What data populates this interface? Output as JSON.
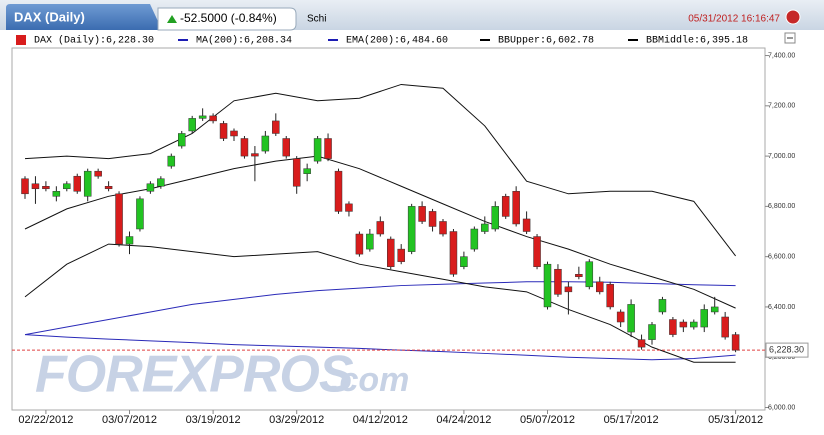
{
  "header": {
    "tab": "DAX (Daily)",
    "change": "-52.5000 (-0.84%)",
    "search": "Schi",
    "timestamp": "05/31/2012 16:16:47"
  },
  "watermark": {
    "brand": "FOREXPROS",
    "suffix": ".com"
  },
  "chart_data": {
    "type": "candlestick",
    "up_color": "#22c322",
    "down_color": "#d81c1c",
    "categories": [
      null,
      null,
      "02/22/2012",
      null,
      null,
      null,
      null,
      null,
      null,
      null,
      "03/07/2012",
      null,
      null,
      null,
      null,
      null,
      null,
      null,
      "03/19/2012",
      null,
      null,
      null,
      null,
      null,
      null,
      null,
      "03/29/2012",
      null,
      null,
      null,
      null,
      null,
      null,
      null,
      "04/12/2012",
      null,
      null,
      null,
      null,
      null,
      null,
      null,
      "04/24/2012",
      null,
      null,
      null,
      null,
      null,
      null,
      null,
      "05/07/2012",
      null,
      null,
      null,
      null,
      null,
      null,
      null,
      "05/17/2012",
      null,
      null,
      null,
      null,
      null,
      null,
      null,
      null,
      null,
      "05/31/2012"
    ],
    "open": [
      6910,
      6890,
      6880,
      6840,
      6870,
      6920,
      6840,
      6940,
      6880,
      6850,
      6650,
      6710,
      6860,
      6880,
      6960,
      7040,
      7100,
      7150,
      7160,
      7130,
      7100,
      7070,
      7010,
      7020,
      7140,
      7070,
      6990,
      6930,
      6980,
      7070,
      6940,
      6810,
      6690,
      6630,
      6740,
      6670,
      6630,
      6620,
      6800,
      6780,
      6740,
      6700,
      6560,
      6630,
      6700,
      6710,
      6840,
      6860,
      6750,
      6680,
      6400,
      6550,
      6480,
      6530,
      6480,
      6500,
      6490,
      6380,
      6300,
      6270,
      6270,
      6380,
      6350,
      6340,
      6320,
      6320,
      6380,
      6360,
      6290
    ],
    "high": [
      6920,
      6920,
      6900,
      6880,
      6900,
      6930,
      6950,
      6950,
      6900,
      6860,
      6700,
      6840,
      6900,
      6920,
      7010,
      7100,
      7160,
      7190,
      7170,
      7140,
      7110,
      7080,
      7040,
      7100,
      7170,
      7080,
      7000,
      6970,
      7080,
      7090,
      6950,
      6820,
      6700,
      6710,
      6760,
      6680,
      6650,
      6810,
      6820,
      6790,
      6750,
      6710,
      6620,
      6720,
      6760,
      6820,
      6850,
      6880,
      6780,
      6690,
      6580,
      6570,
      6500,
      6560,
      6590,
      6520,
      6500,
      6390,
      6430,
      6290,
      6340,
      6440,
      6360,
      6350,
      6350,
      6410,
      6440,
      6380,
      6300
    ],
    "low": [
      6830,
      6810,
      6860,
      6820,
      6860,
      6850,
      6820,
      6910,
      6860,
      6640,
      6610,
      6700,
      6850,
      6870,
      6950,
      7030,
      7090,
      7140,
      7130,
      7060,
      7060,
      6990,
      6900,
      7010,
      7080,
      6990,
      6850,
      6900,
      6970,
      6980,
      6770,
      6760,
      6600,
      6620,
      6680,
      6550,
      6570,
      6610,
      6730,
      6700,
      6680,
      6520,
      6550,
      6620,
      6690,
      6700,
      6750,
      6720,
      6690,
      6550,
      6390,
      6440,
      6370,
      6510,
      6470,
      6450,
      6390,
      6320,
      6280,
      6230,
      6250,
      6370,
      6280,
      6300,
      6310,
      6300,
      6370,
      6270,
      6220
    ],
    "close": [
      6850,
      6870,
      6870,
      6860,
      6890,
      6860,
      6940,
      6920,
      6870,
      6650,
      6680,
      6830,
      6890,
      6910,
      7000,
      7090,
      7150,
      7160,
      7140,
      7070,
      7080,
      7000,
      7000,
      7080,
      7090,
      7000,
      6880,
      6950,
      7070,
      6990,
      6780,
      6780,
      6610,
      6690,
      6690,
      6560,
      6580,
      6800,
      6740,
      6720,
      6690,
      6530,
      6600,
      6710,
      6730,
      6800,
      6760,
      6730,
      6700,
      6560,
      6570,
      6450,
      6460,
      6520,
      6580,
      6460,
      6400,
      6340,
      6410,
      6240,
      6330,
      6430,
      6290,
      6320,
      6340,
      6390,
      6400,
      6280,
      6228.3
    ],
    "last_label": "6,228.30",
    "legend": [
      "DAX (Daily):6,228.30",
      "MA(200):6,208.34",
      "EMA(200):6,484.60",
      "BBUpper:6,602.78",
      "BBMiddle:6,395.18"
    ],
    "legend_colors": [
      "#d81c1c",
      "#1c1cb4",
      "#1c1cb4",
      "#000000",
      "#000000"
    ],
    "series": [
      {
        "color": "#2a2ab8",
        "x": [
          0,
          4,
          8,
          12,
          16,
          20,
          24,
          28,
          32,
          36,
          40,
          44,
          48,
          52,
          56,
          60,
          64,
          68
        ],
        "values": [
          6290,
          6280,
          6272,
          6265,
          6258,
          6250,
          6245,
          6240,
          6235,
          6228,
          6222,
          6215,
          6208,
          6200,
          6195,
          6190,
          6195,
          6208.34
        ]
      },
      {
        "color": "#2a2ab8",
        "x": [
          0,
          4,
          8,
          12,
          16,
          20,
          24,
          28,
          32,
          36,
          40,
          44,
          48,
          52,
          56,
          60,
          64,
          68
        ],
        "values": [
          6290,
          6320,
          6350,
          6380,
          6410,
          6430,
          6450,
          6465,
          6475,
          6485,
          6490,
          6495,
          6500,
          6500,
          6498,
          6493,
          6488,
          6484.6
        ]
      },
      {
        "color": "#111111",
        "x": [
          0,
          4,
          8,
          12,
          16,
          20,
          24,
          28,
          32,
          36,
          40,
          44,
          48,
          52,
          56,
          60,
          64,
          68
        ],
        "values": [
          6990,
          7000,
          6990,
          7010,
          7090,
          7220,
          7250,
          7220,
          7230,
          7285,
          7270,
          7120,
          6900,
          6850,
          6860,
          6860,
          6820,
          6602.78
        ]
      },
      {
        "color": "#111111",
        "x": [
          0,
          4,
          8,
          12,
          16,
          20,
          24,
          28,
          32,
          36,
          40,
          44,
          48,
          52,
          56,
          60,
          64,
          68
        ],
        "values": [
          6710,
          6790,
          6840,
          6870,
          6910,
          6950,
          6980,
          7000,
          6950,
          6880,
          6810,
          6740,
          6680,
          6630,
          6570,
          6520,
          6470,
          6395.18
        ]
      },
      {
        "color": "#111111",
        "x": [
          0,
          4,
          8,
          12,
          16,
          20,
          24,
          28,
          32,
          36,
          40,
          44,
          48,
          52,
          56,
          60,
          64,
          68
        ],
        "values": [
          6440,
          6570,
          6650,
          6640,
          6620,
          6600,
          6610,
          6620,
          6570,
          6540,
          6510,
          6480,
          6460,
          6390,
          6330,
          6240,
          6180,
          6180
        ]
      }
    ],
    "ylim": [
      5990,
      7430
    ],
    "yticks": [
      {
        "value": 6000,
        "label": "6,000.00"
      },
      {
        "value": 6200,
        "label": "6,200.00"
      },
      {
        "value": 6400,
        "label": "6,400.00"
      },
      {
        "value": 6600,
        "label": "6,600.00"
      },
      {
        "value": 6800,
        "label": "6,800.00"
      },
      {
        "value": 7000,
        "label": "7,000.00"
      },
      {
        "value": 7200,
        "label": "7,200.00"
      },
      {
        "value": 7400,
        "label": "7,400.00"
      }
    ]
  }
}
